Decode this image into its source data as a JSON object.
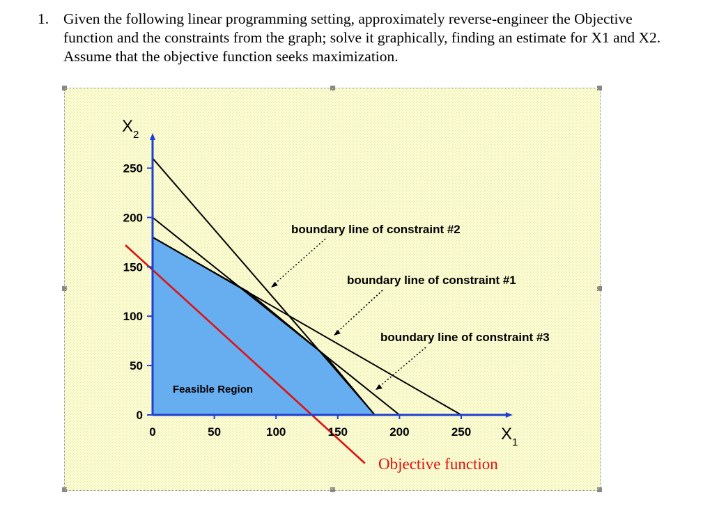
{
  "question": {
    "number": "1.",
    "text": "Given the following linear programming setting, approximately reverse-engineer the Objective function and the constraints from the graph; solve it graphically, finding an estimate for X1 and X2. Assume that the objective function seeks maximization."
  },
  "chart_data": {
    "type": "line",
    "xlabel": "X",
    "xlabel_sub": "1",
    "ylabel": "X",
    "ylabel_sub": "2",
    "x_ticks": [
      0,
      50,
      100,
      150,
      200,
      250
    ],
    "y_ticks": [
      0,
      50,
      100,
      150,
      200,
      250
    ],
    "xlim": [
      0,
      290
    ],
    "ylim": [
      0,
      280
    ],
    "colors": {
      "background": "#fbfbd0",
      "feasible_fill": "#66aef0",
      "axis": "#1f3fd0",
      "objective": "#e01010",
      "constraint": "#000000"
    },
    "constraints": [
      {
        "name": "constraint #1",
        "x_intercept": 200,
        "y_intercept": 200,
        "label": "boundary line of constraint #1"
      },
      {
        "name": "constraint #2",
        "x_intercept": 180,
        "y_intercept": 260,
        "label": "boundary line of constraint #2"
      },
      {
        "name": "constraint #3",
        "x_intercept": 250,
        "y_intercept": 180,
        "label": "boundary line of constraint #3"
      }
    ],
    "objective_line": {
      "points": [
        [
          -22,
          172
        ],
        [
          172,
          -49
        ]
      ],
      "label": "Objective function"
    },
    "feasible_region": {
      "label": "Feasible Region",
      "vertices": [
        [
          0,
          0
        ],
        [
          0,
          180
        ],
        [
          77,
          125
        ],
        [
          140,
          60
        ],
        [
          180,
          0
        ]
      ]
    }
  }
}
